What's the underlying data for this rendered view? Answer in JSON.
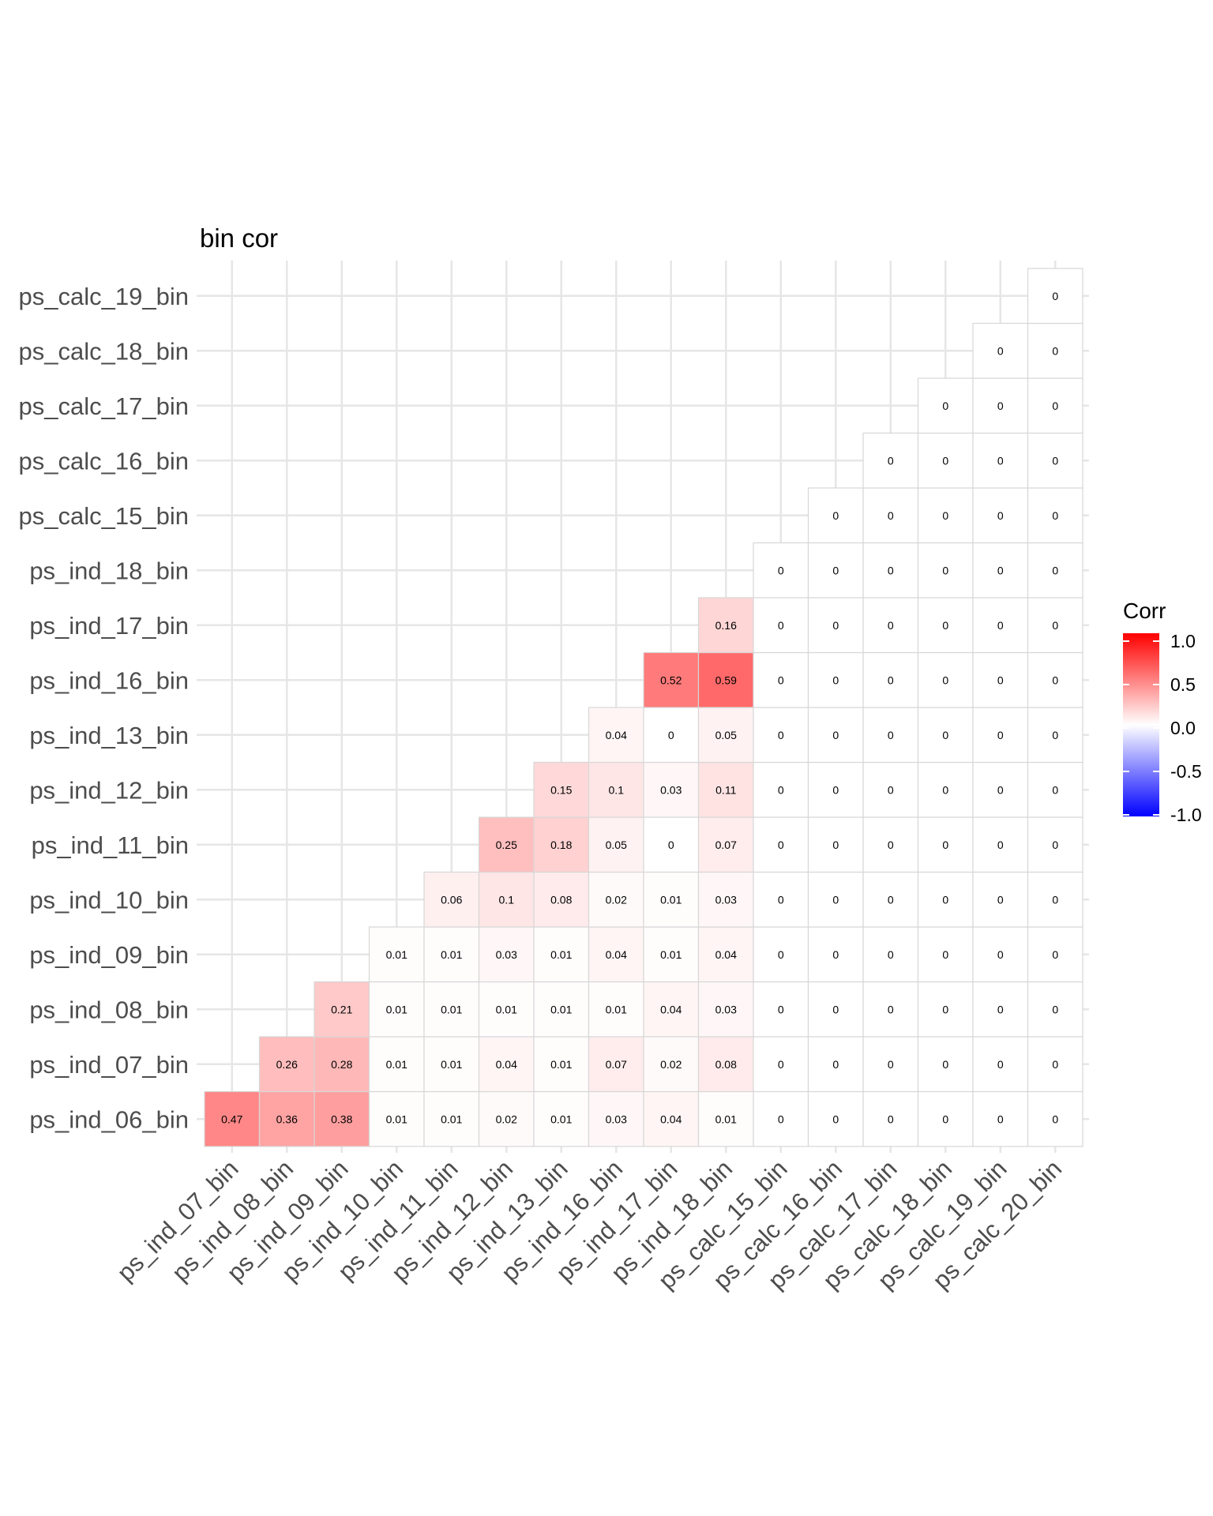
{
  "chart_data": {
    "type": "heatmap",
    "title": "bin cor",
    "x_categories": [
      "ps_ind_07_bin",
      "ps_ind_08_bin",
      "ps_ind_09_bin",
      "ps_ind_10_bin",
      "ps_ind_11_bin",
      "ps_ind_12_bin",
      "ps_ind_13_bin",
      "ps_ind_16_bin",
      "ps_ind_17_bin",
      "ps_ind_18_bin",
      "ps_calc_15_bin",
      "ps_calc_16_bin",
      "ps_calc_17_bin",
      "ps_calc_18_bin",
      "ps_calc_19_bin",
      "ps_calc_20_bin"
    ],
    "y_categories": [
      "ps_ind_06_bin",
      "ps_ind_07_bin",
      "ps_ind_08_bin",
      "ps_ind_09_bin",
      "ps_ind_10_bin",
      "ps_ind_11_bin",
      "ps_ind_12_bin",
      "ps_ind_13_bin",
      "ps_ind_16_bin",
      "ps_ind_17_bin",
      "ps_ind_18_bin",
      "ps_calc_15_bin",
      "ps_calc_16_bin",
      "ps_calc_17_bin",
      "ps_calc_18_bin",
      "ps_calc_19_bin"
    ],
    "values": [
      [
        0.47,
        0.36,
        0.38,
        0.01,
        0.01,
        0.02,
        0.01,
        0.03,
        0.04,
        0.01,
        0,
        0,
        0,
        0,
        0,
        0
      ],
      [
        null,
        0.26,
        0.28,
        0.01,
        0.01,
        0.04,
        0.01,
        0.07,
        0.02,
        0.08,
        0,
        0,
        0,
        0,
        0,
        0
      ],
      [
        null,
        null,
        0.21,
        0.01,
        0.01,
        0.01,
        0.01,
        0.01,
        0.04,
        0.03,
        0,
        0,
        0,
        0,
        0,
        0
      ],
      [
        null,
        null,
        null,
        0.01,
        0.01,
        0.03,
        0.01,
        0.04,
        0.01,
        0.04,
        0,
        0,
        0,
        0,
        0,
        0
      ],
      [
        null,
        null,
        null,
        null,
        0.06,
        0.1,
        0.08,
        0.02,
        0.01,
        0.03,
        0,
        0,
        0,
        0,
        0,
        0
      ],
      [
        null,
        null,
        null,
        null,
        null,
        0.25,
        0.18,
        0.05,
        0,
        0.07,
        0,
        0,
        0,
        0,
        0,
        0
      ],
      [
        null,
        null,
        null,
        null,
        null,
        null,
        0.15,
        0.1,
        0.03,
        0.11,
        0,
        0,
        0,
        0,
        0,
        0
      ],
      [
        null,
        null,
        null,
        null,
        null,
        null,
        null,
        0.04,
        0,
        0.05,
        0,
        0,
        0,
        0,
        0,
        0
      ],
      [
        null,
        null,
        null,
        null,
        null,
        null,
        null,
        null,
        0.52,
        0.59,
        0,
        0,
        0,
        0,
        0,
        0
      ],
      [
        null,
        null,
        null,
        null,
        null,
        null,
        null,
        null,
        null,
        0.16,
        0,
        0,
        0,
        0,
        0,
        0
      ],
      [
        null,
        null,
        null,
        null,
        null,
        null,
        null,
        null,
        null,
        null,
        0,
        0,
        0,
        0,
        0,
        0
      ],
      [
        null,
        null,
        null,
        null,
        null,
        null,
        null,
        null,
        null,
        null,
        null,
        0,
        0,
        0,
        0,
        0
      ],
      [
        null,
        null,
        null,
        null,
        null,
        null,
        null,
        null,
        null,
        null,
        null,
        null,
        0,
        0,
        0,
        0
      ],
      [
        null,
        null,
        null,
        null,
        null,
        null,
        null,
        null,
        null,
        null,
        null,
        null,
        null,
        0,
        0,
        0
      ],
      [
        null,
        null,
        null,
        null,
        null,
        null,
        null,
        null,
        null,
        null,
        null,
        null,
        null,
        null,
        0,
        0
      ],
      [
        null,
        null,
        null,
        null,
        null,
        null,
        null,
        null,
        null,
        null,
        null,
        null,
        null,
        null,
        null,
        0
      ]
    ],
    "color_scale": {
      "low": "#0000ff",
      "mid": "#ffffff",
      "high": "#ff0000",
      "limits": [
        -1,
        1
      ]
    },
    "legend": {
      "title": "Corr",
      "ticks": [
        1.0,
        0.5,
        0.0,
        -0.5,
        -1.0
      ],
      "tick_labels": [
        "1.0",
        "0.5",
        "0.0",
        "-0.5",
        "-1.0"
      ],
      "placement": "right"
    },
    "grid": true
  }
}
